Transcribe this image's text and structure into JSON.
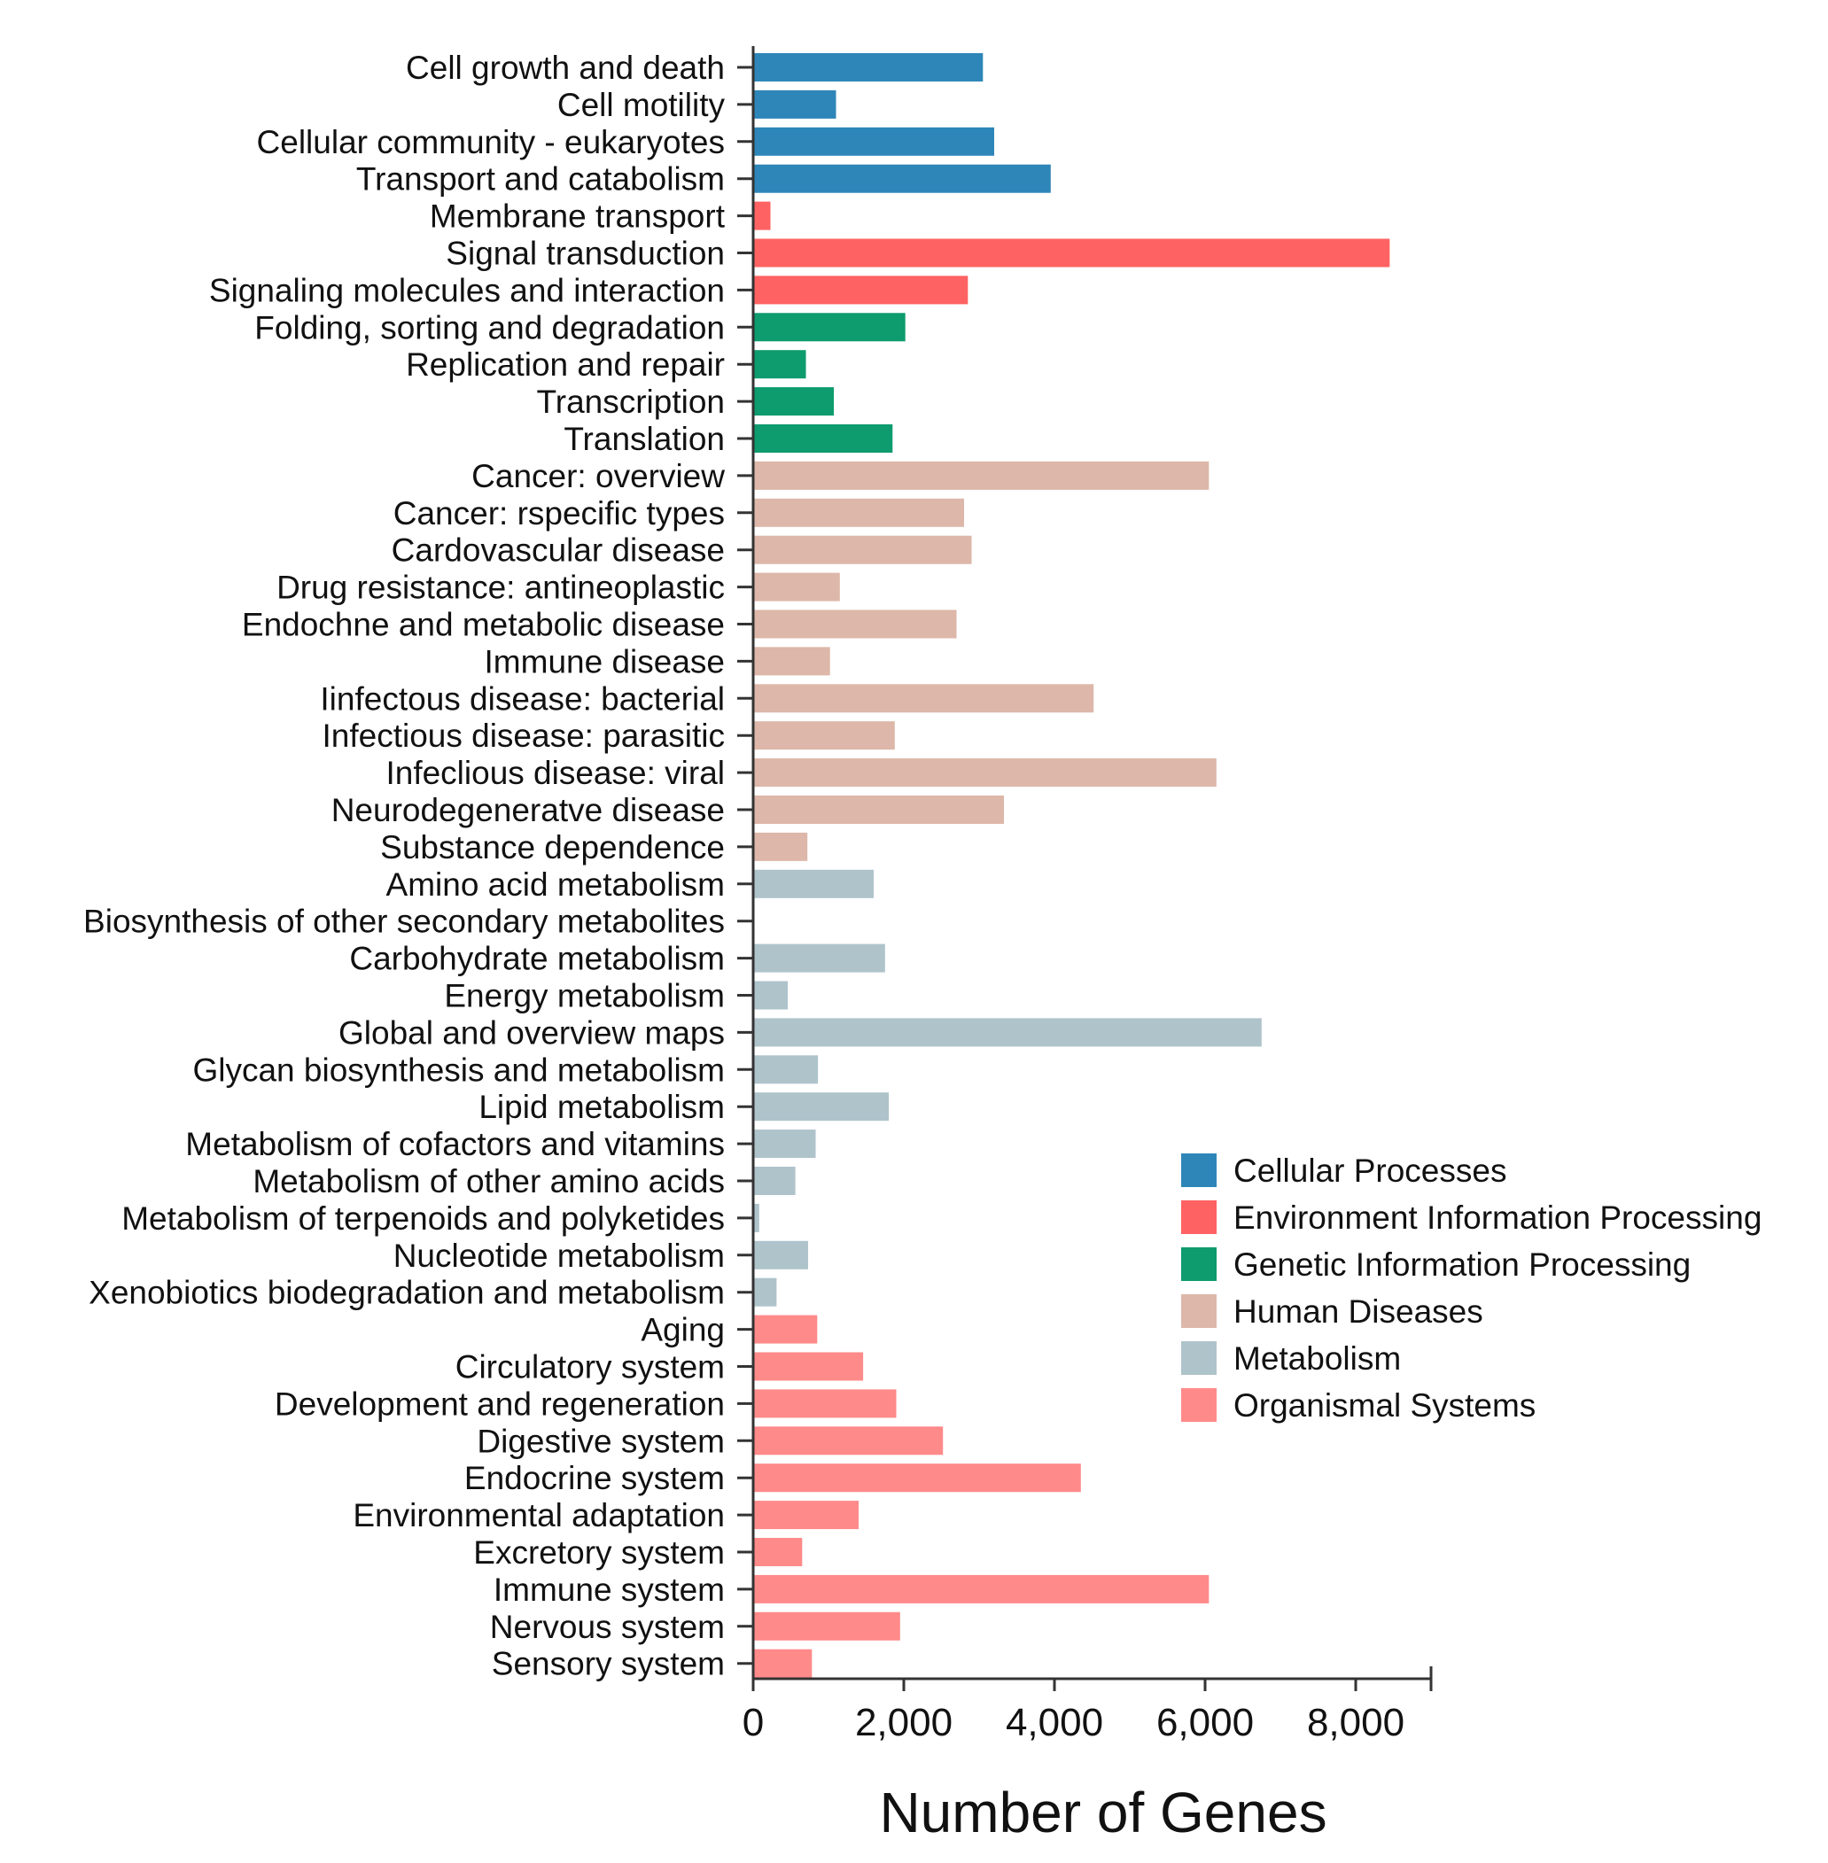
{
  "chart_data": {
    "type": "bar",
    "orientation": "horizontal",
    "title": "",
    "xlabel": "Number of Genes",
    "ylabel": "",
    "xlim": [
      0,
      9000
    ],
    "xticks": [
      0,
      2000,
      4000,
      6000,
      8000
    ],
    "xtick_labels": [
      "0",
      "2,000",
      "4,000",
      "6,000",
      "8,000"
    ],
    "grid": false,
    "legend_position": "right",
    "groups": [
      {
        "name": "Cellular Processes",
        "color": "#2E86B8"
      },
      {
        "name": "Environment Information Processing",
        "color": "#FF6262"
      },
      {
        "name": "Genetic Information Processing",
        "color": "#0E9B6E"
      },
      {
        "name": "Human Diseases",
        "color": "#DDB7A9"
      },
      {
        "name": "Metabolism",
        "color": "#AFC3CB"
      },
      {
        "name": "Organismal Systems",
        "color": "#FF8A8A"
      }
    ],
    "bars": [
      {
        "label": "Cell growth and death",
        "value": 3050,
        "group": 0
      },
      {
        "label": "Cell motility",
        "value": 1100,
        "group": 0
      },
      {
        "label": "Cellular community - eukaryotes",
        "value": 3200,
        "group": 0
      },
      {
        "label": "Transport and catabolism",
        "value": 3950,
        "group": 0
      },
      {
        "label": "Membrane transport",
        "value": 230,
        "group": 1
      },
      {
        "label": "Signal transduction",
        "value": 8450,
        "group": 1
      },
      {
        "label": "Signaling molecules and interaction",
        "value": 2850,
        "group": 1
      },
      {
        "label": "Folding, sorting and degradation",
        "value": 2020,
        "group": 2
      },
      {
        "label": "Replication and repair",
        "value": 700,
        "group": 2
      },
      {
        "label": "Transcription",
        "value": 1070,
        "group": 2
      },
      {
        "label": "Translation",
        "value": 1850,
        "group": 2
      },
      {
        "label": "Cancer: overview",
        "value": 6050,
        "group": 3
      },
      {
        "label": "Cancer: rspecific types",
        "value": 2800,
        "group": 3
      },
      {
        "label": "Cardovascular disease",
        "value": 2900,
        "group": 3
      },
      {
        "label": "Drug resistance: antineoplastic",
        "value": 1150,
        "group": 3
      },
      {
        "label": "Endochne and metabolic disease",
        "value": 2700,
        "group": 3
      },
      {
        "label": "Immune disease",
        "value": 1020,
        "group": 3
      },
      {
        "label": "Iinfectous disease: bacterial",
        "value": 4520,
        "group": 3
      },
      {
        "label": "Infectious disease: parasitic",
        "value": 1880,
        "group": 3
      },
      {
        "label": "Infeclious disease: viral",
        "value": 6150,
        "group": 3
      },
      {
        "label": "Neurodegeneratve disease",
        "value": 3330,
        "group": 3
      },
      {
        "label": "Substance dependence",
        "value": 720,
        "group": 3
      },
      {
        "label": "Amino acid metabolism",
        "value": 1600,
        "group": 4
      },
      {
        "label": "Biosynthesis of other secondary metabolites",
        "value": 0,
        "group": 4
      },
      {
        "label": "Carbohydrate metabolism",
        "value": 1750,
        "group": 4
      },
      {
        "label": "Energy metabolism",
        "value": 460,
        "group": 4
      },
      {
        "label": "Global and overview maps",
        "value": 6750,
        "group": 4
      },
      {
        "label": "Glycan biosynthesis and metabolism",
        "value": 860,
        "group": 4
      },
      {
        "label": "Lipid metabolism",
        "value": 1800,
        "group": 4
      },
      {
        "label": "Metabolism of cofactors and vitamins",
        "value": 830,
        "group": 4
      },
      {
        "label": "Metabolism of other amino acids",
        "value": 560,
        "group": 4
      },
      {
        "label": "Metabolism of terpenoids and polyketides",
        "value": 80,
        "group": 4
      },
      {
        "label": "Nucleotide metabolism",
        "value": 730,
        "group": 4
      },
      {
        "label": "Xenobiotics biodegradation and metabolism",
        "value": 310,
        "group": 4
      },
      {
        "label": "Aging",
        "value": 850,
        "group": 5
      },
      {
        "label": "Circulatory system",
        "value": 1460,
        "group": 5
      },
      {
        "label": "Development and regeneration",
        "value": 1900,
        "group": 5
      },
      {
        "label": "Digestive system",
        "value": 2520,
        "group": 5
      },
      {
        "label": "Endocrine system",
        "value": 4350,
        "group": 5
      },
      {
        "label": "Environmental adaptation",
        "value": 1400,
        "group": 5
      },
      {
        "label": "Excretory system",
        "value": 650,
        "group": 5
      },
      {
        "label": "Immune system",
        "value": 6050,
        "group": 5
      },
      {
        "label": "Nervous system",
        "value": 1950,
        "group": 5
      },
      {
        "label": "Sensory system",
        "value": 780,
        "group": 5
      }
    ]
  }
}
